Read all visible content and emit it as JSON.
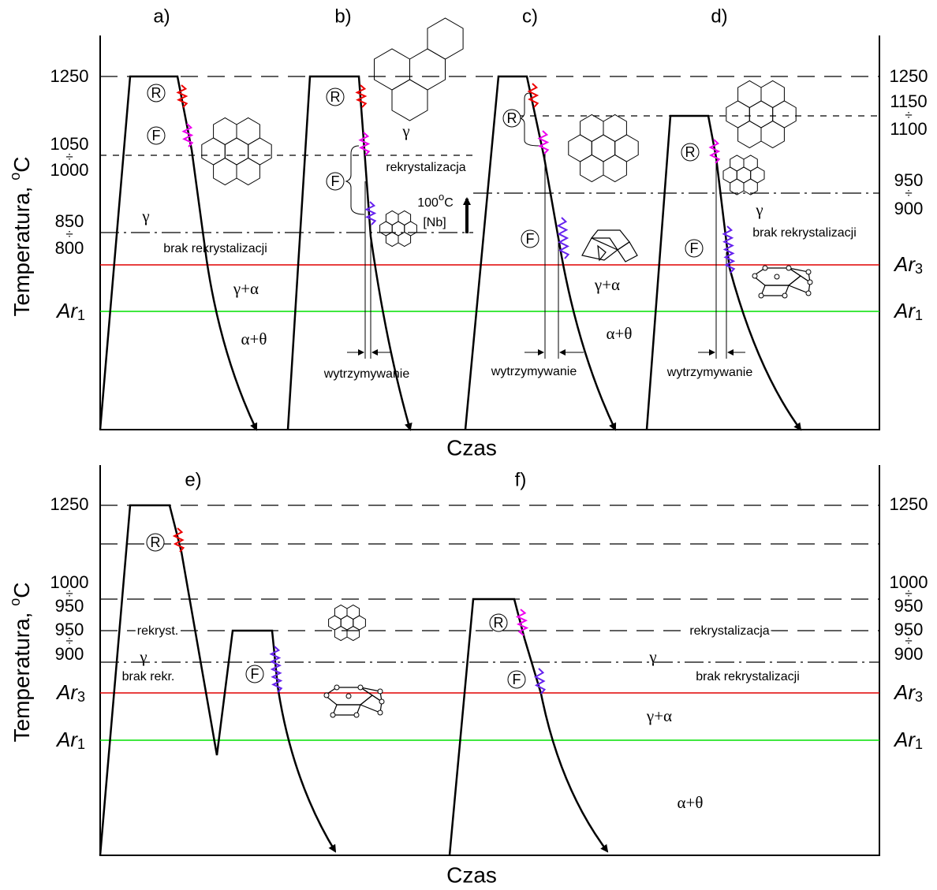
{
  "top": {
    "panels": [
      "a)",
      "b)",
      "c)",
      "d)"
    ],
    "y_title": {
      "text": "Temperatura, ",
      "sup": "o",
      "unit": "C"
    },
    "left_labels": [
      "1250",
      "1050",
      "÷",
      "1000",
      "850",
      "÷",
      "800"
    ],
    "left_ar1": {
      "italic": "Ar",
      "sub": "1"
    },
    "right_labels": [
      "1250",
      "1150",
      "÷",
      "1100",
      "950",
      "÷",
      "900"
    ],
    "right_ar3": {
      "italic": "Ar",
      "sub": "3"
    },
    "right_ar1": {
      "italic": "Ar",
      "sub": "1"
    },
    "markers": [
      "R",
      "F",
      "R",
      "F",
      "R",
      "F",
      "R",
      "F"
    ],
    "annotations": [
      "γ",
      "brak rekrystalizacji",
      "γ+α",
      "α+θ",
      "γ",
      "rekrystalizacja",
      "[Nb]",
      "wytrzymywanie",
      "γ+α",
      "α+θ",
      "wytrzymywanie",
      "γ",
      "brak rekrystalizacji",
      "wytrzymywanie"
    ],
    "nb_shift": {
      "text": "100",
      "sup": "o",
      "unit": "C"
    },
    "x_title": "Czas"
  },
  "bottom": {
    "panels": [
      "e)",
      "f)"
    ],
    "y_title": {
      "text": "Temperatura, ",
      "sup": "o",
      "unit": "C"
    },
    "left_labels": [
      "1250",
      "1000",
      "÷",
      "950",
      "950",
      "÷",
      "900"
    ],
    "left_ar3": {
      "italic": "Ar",
      "sub": "3"
    },
    "left_ar1": {
      "italic": "Ar",
      "sub": "1"
    },
    "right_labels": [
      "1250",
      "1000",
      "÷",
      "950",
      "950",
      "÷",
      "900"
    ],
    "right_ar3": {
      "italic": "Ar",
      "sub": "3"
    },
    "right_ar1": {
      "italic": "Ar",
      "sub": "1"
    },
    "markers": [
      "R",
      "F",
      "R",
      "F"
    ],
    "annotations": [
      "rekryst.",
      "γ",
      "brak rekr.",
      "rekrystalizacja",
      "γ",
      "brak rekrystalizacji",
      "γ+α",
      "α+θ"
    ],
    "x_title": "Czas"
  }
}
